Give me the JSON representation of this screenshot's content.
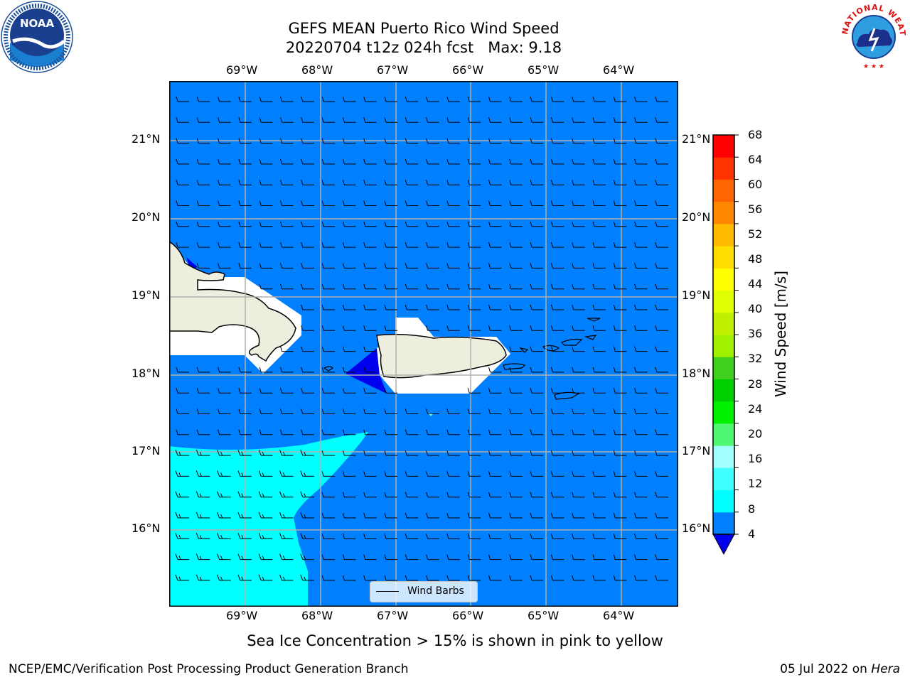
{
  "header": {
    "title_line1": "GEFS MEAN Puerto Rico Wind Speed",
    "title_line2": "20220704 t12z 024h fcst   Max: 9.18"
  },
  "map": {
    "lon_labels": [
      "69°W",
      "68°W",
      "67°W",
      "66°W",
      "65°W",
      "64°W"
    ],
    "lat_labels": [
      "21°N",
      "20°N",
      "19°N",
      "18°N",
      "17°N",
      "16°N"
    ],
    "colors": {
      "ocean_low": "#0080ff",
      "ocean_mid": "#00ffff",
      "minimum": "#0000ee",
      "land": "#eeeedf",
      "grid": "#b0b0b0"
    }
  },
  "colorbar": {
    "title": "Wind Speed [m/s]",
    "tick_labels": [
      "68",
      "64",
      "60",
      "56",
      "52",
      "48",
      "44",
      "40",
      "36",
      "32",
      "28",
      "24",
      "20",
      "16",
      "12",
      "8",
      "4"
    ],
    "colors": [
      "#0080ff",
      "#00ffff",
      "#40ffff",
      "#a0ffff",
      "#50f770",
      "#00f000",
      "#00d000",
      "#40d020",
      "#a0f000",
      "#c0f000",
      "#e0ff00",
      "#ffff00",
      "#ffdd00",
      "#ffbb00",
      "#ff8800",
      "#ff6600",
      "#ff3300",
      "#ff0000"
    ],
    "under_color": "#0000ee"
  },
  "legend": {
    "label": "Wind Barbs"
  },
  "notes": {
    "sea_ice": "Sea Ice Concentration > 15% is shown in pink to yellow"
  },
  "footer": {
    "left": "NCEP/EMC/Verification Post Processing Product Generation Branch",
    "date": "05 Jul 2022 on",
    "host": "Hera"
  },
  "logos": {
    "noaa": "NOAA",
    "nws": "NATIONAL WEATHER SERVICE"
  }
}
